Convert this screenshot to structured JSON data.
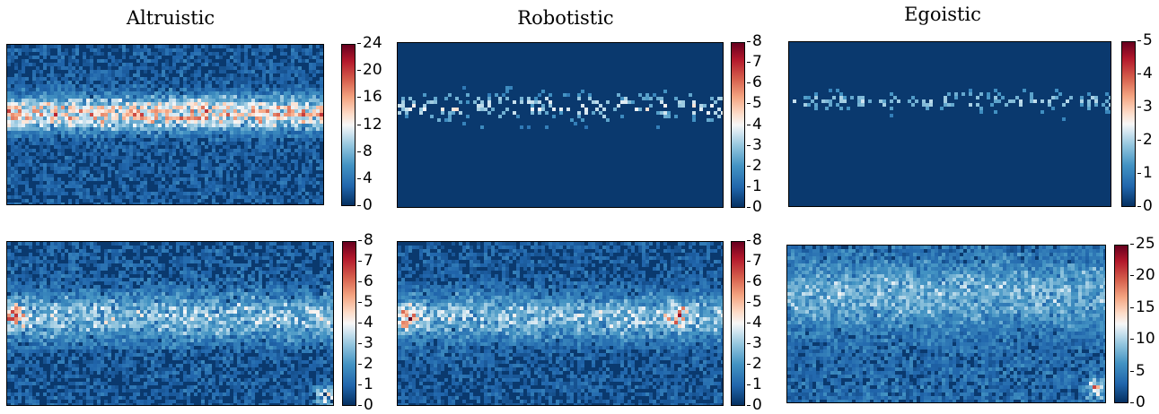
{
  "chart_data": [
    {
      "type": "heatmap",
      "title": "Altruistic",
      "colorbar": {
        "ticks": [
          "0",
          "4",
          "8",
          "12",
          "16",
          "20",
          "24"
        ],
        "range": [
          0,
          24
        ]
      },
      "colormap": "RdBu_r"
    },
    {
      "type": "heatmap",
      "title": "Robotistic",
      "colorbar": {
        "ticks": [
          "0",
          "1",
          "2",
          "3",
          "4",
          "5",
          "6",
          "7",
          "8"
        ],
        "range": [
          0,
          8
        ]
      },
      "colormap": "RdBu_r"
    },
    {
      "type": "heatmap",
      "title": "Egoistic",
      "colorbar": {
        "ticks": [
          "0",
          "1",
          "2",
          "3",
          "4",
          "5"
        ],
        "range": [
          0,
          5
        ]
      },
      "colormap": "RdBu_r"
    },
    {
      "type": "heatmap",
      "title": "",
      "colorbar": {
        "ticks": [
          "0",
          "1",
          "2",
          "3",
          "4",
          "5",
          "6",
          "7",
          "8"
        ],
        "range": [
          0,
          8
        ]
      },
      "colormap": "RdBu_r"
    },
    {
      "type": "heatmap",
      "title": "",
      "colorbar": {
        "ticks": [
          "0",
          "1",
          "2",
          "3",
          "4",
          "5",
          "6",
          "7",
          "8"
        ],
        "range": [
          0,
          8
        ]
      },
      "colormap": "RdBu_r"
    },
    {
      "type": "heatmap",
      "title": "",
      "colorbar": {
        "ticks": [
          "0",
          "5",
          "10",
          "15",
          "20",
          "25"
        ],
        "range": [
          0,
          25
        ]
      },
      "colormap": "RdBu_r"
    }
  ],
  "colors": {
    "low": "#053061",
    "mid": "#f7f7f7",
    "high": "#67001f"
  }
}
